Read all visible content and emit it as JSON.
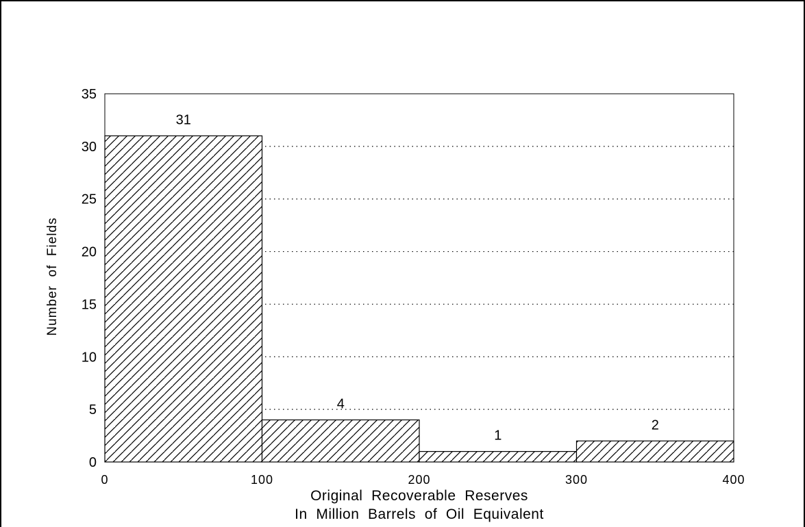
{
  "chart_data": {
    "type": "bar",
    "title": "",
    "bins": [
      {
        "x0": 0,
        "x1": 100,
        "value": 31,
        "label": "31"
      },
      {
        "x0": 100,
        "x1": 200,
        "value": 4,
        "label": "4"
      },
      {
        "x0": 200,
        "x1": 300,
        "value": 1,
        "label": "1"
      },
      {
        "x0": 300,
        "x1": 400,
        "value": 2,
        "label": "2"
      }
    ],
    "xlabel": [
      "Original  Recoverable  Reserves",
      "In  Million  Barrels  of  Oil  Equivalent"
    ],
    "ylabel": "Number  of  Fields",
    "xlim": [
      0,
      400
    ],
    "ylim": [
      0,
      35
    ],
    "xticks": [
      0,
      100,
      200,
      300,
      400
    ],
    "yticks": [
      0,
      5,
      10,
      15,
      20,
      25,
      30,
      35
    ],
    "grid": "horizontal-dotted",
    "bar_fill": "diagonal-hatch",
    "colors": {
      "line": "#000000",
      "background": "#ffffff"
    }
  }
}
